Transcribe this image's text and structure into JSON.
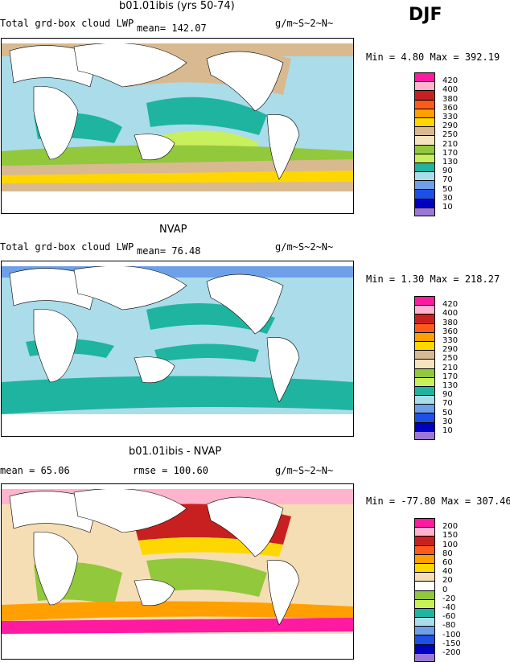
{
  "season": "DJF",
  "panels": [
    {
      "title": "b01.01ibis (yrs 50-74)",
      "left_text": "Total grd-box cloud LWP",
      "mean_text": "mean=  142.07",
      "units": "g/m~S~2~N~",
      "minmax": "Min =    4.80 Max = 392.19",
      "levels": [
        "420",
        "400",
        "380",
        "360",
        "330",
        "290",
        "250",
        "210",
        "170",
        "130",
        "90",
        "70",
        "50",
        "30",
        "10"
      ],
      "colors": [
        "#ff1aa0",
        "#ffb3cc",
        "#c82020",
        "#ff5a1a",
        "#ff9f00",
        "#ffd700",
        "#d9b990",
        "#f5e3c0",
        "#92c83c",
        "#c8f05a",
        "#1fb4a0",
        "#aadcea",
        "#6da0e8",
        "#1e50e6",
        "#0000c0",
        "#9b78d8"
      ]
    },
    {
      "title": "NVAP",
      "left_text": "Total grd-box cloud LWP",
      "mean_text": "mean=   76.48",
      "units": "g/m~S~2~N~",
      "minmax": "Min =    1.30 Max = 218.27",
      "levels": [
        "420",
        "400",
        "380",
        "360",
        "330",
        "290",
        "250",
        "210",
        "170",
        "130",
        "90",
        "70",
        "50",
        "30",
        "10"
      ],
      "colors": [
        "#ff1aa0",
        "#ffb3cc",
        "#c82020",
        "#ff5a1a",
        "#ff9f00",
        "#ffd700",
        "#d9b990",
        "#f5e3c0",
        "#92c83c",
        "#c8f05a",
        "#1fb4a0",
        "#aadcea",
        "#6da0e8",
        "#1e50e6",
        "#0000c0",
        "#9b78d8"
      ]
    },
    {
      "title": "b01.01ibis - NVAP",
      "left_text": "mean =   65.06",
      "mean_text": "rmse =  100.60",
      "units": "g/m~S~2~N~",
      "minmax": "Min = -77.80 Max = 307.46",
      "levels": [
        "200",
        "150",
        "100",
        "80",
        "60",
        "40",
        "20",
        "0",
        "-20",
        "-40",
        "-60",
        "-80",
        "-100",
        "-150",
        "-200"
      ],
      "colors": [
        "#ff1aa0",
        "#ffb3cc",
        "#c82020",
        "#ff5a1a",
        "#ff9f00",
        "#ffd700",
        "#f5deb3",
        "#ffffff",
        "#92c83c",
        "#c8f05a",
        "#1fb4a0",
        "#aadcea",
        "#6da0e8",
        "#1e50e6",
        "#0000c0",
        "#9b78d8"
      ]
    }
  ]
}
